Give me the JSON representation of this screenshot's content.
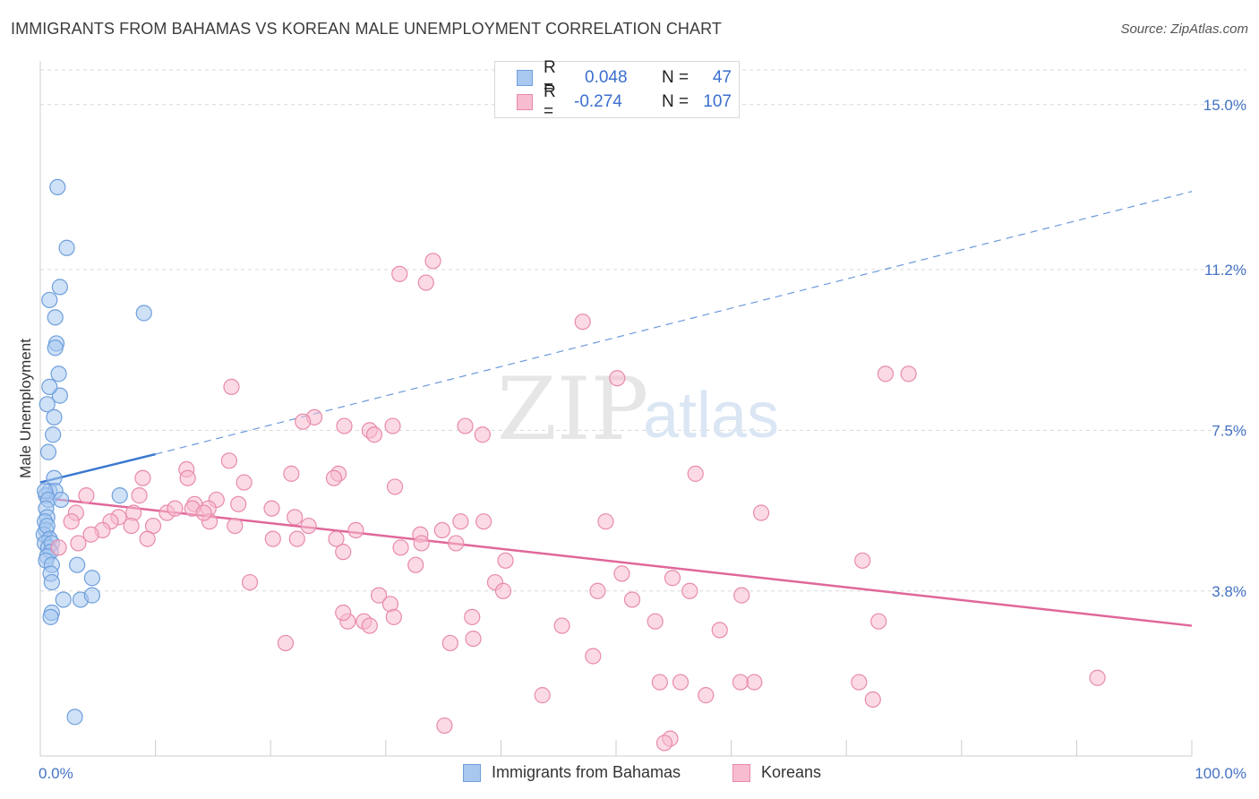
{
  "title": "IMMIGRANTS FROM BAHAMAS VS KOREAN MALE UNEMPLOYMENT CORRELATION CHART",
  "source": "Source: ZipAtlas.com",
  "watermark": {
    "zip": "ZIP",
    "atlas": "atlas"
  },
  "legend": {
    "rows": [
      {
        "r_label": "R =",
        "r_value": "0.048",
        "n_label": "N =",
        "n_value": "47",
        "color": "#a8c8f0",
        "border": "#6e9fdc"
      },
      {
        "r_label": "R =",
        "r_value": "-0.274",
        "n_label": "N =",
        "n_value": "107",
        "color": "#f8bcd0",
        "border": "#e88aaa"
      }
    ]
  },
  "bottom_legend": [
    {
      "label": "Immigrants from Bahamas",
      "color": "#a8c8f0",
      "border": "#6e9fdc"
    },
    {
      "label": "Koreans",
      "color": "#f8bcd0",
      "border": "#e88aaa"
    }
  ],
  "chart_data": {
    "type": "scatter",
    "xlabel": "",
    "ylabel": "Male Unemployment",
    "xlim": [
      0,
      100
    ],
    "ylim": [
      0,
      15.8
    ],
    "x_tick_labels": [
      "0.0%",
      "100.0%"
    ],
    "y_ticks": [
      3.8,
      7.5,
      11.2,
      15.0
    ],
    "y_tick_labels": [
      "3.8%",
      "7.5%",
      "11.2%",
      "15.0%"
    ],
    "grid": "horizontal dashed",
    "legend_position": "top-center",
    "series": [
      {
        "name": "Immigrants from Bahamas",
        "color": "#a8c8f0",
        "stroke": "#6e9fdc",
        "trend": {
          "x0": 0,
          "y0": 6.3,
          "x1": 10,
          "y1": 6.95,
          "dash_to_x": 100,
          "dash_to_y": 13.0,
          "color": "#3a78d0"
        },
        "points": [
          [
            1.5,
            13.1
          ],
          [
            2.3,
            11.7
          ],
          [
            1.7,
            10.8
          ],
          [
            0.8,
            10.5
          ],
          [
            1.3,
            10.1
          ],
          [
            9.0,
            10.2
          ],
          [
            1.4,
            9.5
          ],
          [
            1.3,
            9.4
          ],
          [
            1.6,
            8.8
          ],
          [
            1.7,
            8.3
          ],
          [
            0.8,
            8.5
          ],
          [
            0.6,
            8.1
          ],
          [
            1.2,
            7.8
          ],
          [
            1.1,
            7.4
          ],
          [
            0.7,
            7.0
          ],
          [
            1.2,
            6.4
          ],
          [
            0.8,
            6.1
          ],
          [
            1.3,
            6.1
          ],
          [
            0.5,
            6.0
          ],
          [
            0.4,
            6.1
          ],
          [
            0.7,
            5.9
          ],
          [
            0.5,
            5.7
          ],
          [
            1.8,
            5.9
          ],
          [
            0.6,
            5.5
          ],
          [
            6.9,
            6.0
          ],
          [
            0.4,
            5.4
          ],
          [
            0.5,
            5.2
          ],
          [
            0.3,
            5.1
          ],
          [
            0.6,
            5.3
          ],
          [
            0.8,
            5.0
          ],
          [
            0.4,
            4.9
          ],
          [
            0.7,
            4.8
          ],
          [
            1.0,
            4.9
          ],
          [
            0.9,
            4.7
          ],
          [
            0.6,
            4.6
          ],
          [
            0.5,
            4.5
          ],
          [
            1.0,
            4.4
          ],
          [
            3.2,
            4.4
          ],
          [
            0.9,
            4.2
          ],
          [
            4.5,
            4.1
          ],
          [
            1.0,
            4.0
          ],
          [
            2.0,
            3.6
          ],
          [
            3.5,
            3.6
          ],
          [
            4.5,
            3.7
          ],
          [
            1.0,
            3.3
          ],
          [
            3.0,
            0.9
          ],
          [
            0.9,
            3.2
          ]
        ]
      },
      {
        "name": "Koreans",
        "color": "#f8bcd0",
        "stroke": "#e88aaa",
        "trend": {
          "x0": 0,
          "y0": 5.95,
          "x1": 100,
          "y1": 3.0,
          "color": "#e0679a"
        },
        "points": [
          [
            34.1,
            11.4
          ],
          [
            31.2,
            11.1
          ],
          [
            33.5,
            10.9
          ],
          [
            47.1,
            10.0
          ],
          [
            73.4,
            8.8
          ],
          [
            75.4,
            8.8
          ],
          [
            50.1,
            8.7
          ],
          [
            16.6,
            8.5
          ],
          [
            23.8,
            7.8
          ],
          [
            22.8,
            7.7
          ],
          [
            26.4,
            7.6
          ],
          [
            30.6,
            7.6
          ],
          [
            28.6,
            7.5
          ],
          [
            29.0,
            7.4
          ],
          [
            36.9,
            7.6
          ],
          [
            38.4,
            7.4
          ],
          [
            16.4,
            6.8
          ],
          [
            12.7,
            6.6
          ],
          [
            21.8,
            6.5
          ],
          [
            25.9,
            6.5
          ],
          [
            56.9,
            6.5
          ],
          [
            8.9,
            6.4
          ],
          [
            12.8,
            6.4
          ],
          [
            17.7,
            6.3
          ],
          [
            25.5,
            6.4
          ],
          [
            30.8,
            6.2
          ],
          [
            4.0,
            6.0
          ],
          [
            8.6,
            6.0
          ],
          [
            15.3,
            5.9
          ],
          [
            17.2,
            5.8
          ],
          [
            13.4,
            5.8
          ],
          [
            13.2,
            5.7
          ],
          [
            14.6,
            5.7
          ],
          [
            62.6,
            5.6
          ],
          [
            6.8,
            5.5
          ],
          [
            11.0,
            5.6
          ],
          [
            11.7,
            5.7
          ],
          [
            8.1,
            5.6
          ],
          [
            3.1,
            5.6
          ],
          [
            2.7,
            5.4
          ],
          [
            20.1,
            5.7
          ],
          [
            36.5,
            5.4
          ],
          [
            38.5,
            5.4
          ],
          [
            49.1,
            5.4
          ],
          [
            9.8,
            5.3
          ],
          [
            14.7,
            5.4
          ],
          [
            16.9,
            5.3
          ],
          [
            23.3,
            5.3
          ],
          [
            22.1,
            5.5
          ],
          [
            27.4,
            5.2
          ],
          [
            7.9,
            5.3
          ],
          [
            6.1,
            5.4
          ],
          [
            5.4,
            5.2
          ],
          [
            4.4,
            5.1
          ],
          [
            33.0,
            5.1
          ],
          [
            36.1,
            4.9
          ],
          [
            34.9,
            5.2
          ],
          [
            9.3,
            5.0
          ],
          [
            3.3,
            4.9
          ],
          [
            1.6,
            4.8
          ],
          [
            20.2,
            5.0
          ],
          [
            22.3,
            5.0
          ],
          [
            25.7,
            5.0
          ],
          [
            33.1,
            4.9
          ],
          [
            32.6,
            4.4
          ],
          [
            26.3,
            4.7
          ],
          [
            31.3,
            4.8
          ],
          [
            40.4,
            4.5
          ],
          [
            50.5,
            4.2
          ],
          [
            54.9,
            4.1
          ],
          [
            39.5,
            4.0
          ],
          [
            40.2,
            3.8
          ],
          [
            48.4,
            3.8
          ],
          [
            56.4,
            3.8
          ],
          [
            60.9,
            3.7
          ],
          [
            71.4,
            4.5
          ],
          [
            51.4,
            3.6
          ],
          [
            29.4,
            3.7
          ],
          [
            30.4,
            3.5
          ],
          [
            18.2,
            4.0
          ],
          [
            37.5,
            3.2
          ],
          [
            26.7,
            3.1
          ],
          [
            30.7,
            3.2
          ],
          [
            28.1,
            3.1
          ],
          [
            26.3,
            3.3
          ],
          [
            28.6,
            3.0
          ],
          [
            45.3,
            3.0
          ],
          [
            53.4,
            3.1
          ],
          [
            59.0,
            2.9
          ],
          [
            37.6,
            2.7
          ],
          [
            21.3,
            2.6
          ],
          [
            35.6,
            2.6
          ],
          [
            48.0,
            2.3
          ],
          [
            53.8,
            1.7
          ],
          [
            55.6,
            1.7
          ],
          [
            62.0,
            1.7
          ],
          [
            60.8,
            1.7
          ],
          [
            71.1,
            1.7
          ],
          [
            91.8,
            1.8
          ],
          [
            43.6,
            1.4
          ],
          [
            57.8,
            1.4
          ],
          [
            72.3,
            1.3
          ],
          [
            35.1,
            0.7
          ],
          [
            54.7,
            0.4
          ],
          [
            54.2,
            0.3
          ],
          [
            72.8,
            3.1
          ],
          [
            14.2,
            5.6
          ]
        ]
      }
    ]
  }
}
